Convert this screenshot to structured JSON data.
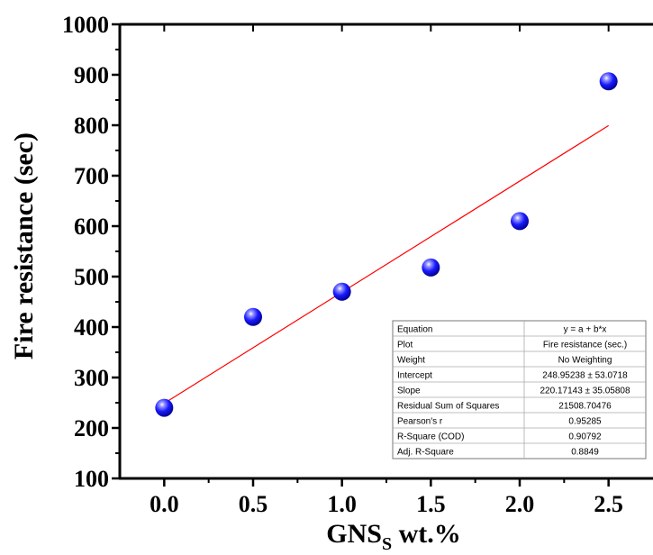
{
  "chart_data": {
    "type": "scatter",
    "title": "",
    "xlabel_main": "GNS",
    "xlabel_sub": "S",
    "xlabel_suffix": " wt.%",
    "ylabel": "Fire resistance (sec)",
    "xlim": [
      -0.25,
      2.75
    ],
    "ylim": [
      100,
      1000
    ],
    "x_ticks": [
      0.0,
      0.5,
      1.0,
      1.5,
      2.0,
      2.5
    ],
    "x_tick_labels": [
      "0.0",
      "0.5",
      "1.0",
      "1.5",
      "2.0",
      "2.5"
    ],
    "y_ticks": [
      100,
      200,
      300,
      400,
      500,
      600,
      700,
      800,
      900,
      1000
    ],
    "y_tick_labels": [
      "100",
      "200",
      "300",
      "400",
      "500",
      "600",
      "700",
      "800",
      "900",
      "1000"
    ],
    "grid": false,
    "series": [
      {
        "type": "scatter",
        "x": [
          0.0,
          0.5,
          1.0,
          1.5,
          2.0,
          2.5
        ],
        "y": [
          240,
          420,
          470,
          518,
          610,
          887
        ],
        "color": "#1a1aff"
      }
    ],
    "fit_line": {
      "intercept": 248.95238,
      "slope": 220.17143,
      "x_range": [
        0.0,
        2.5
      ],
      "color": "#ff0000"
    },
    "stats_table": {
      "placement": "bottom-right",
      "rows": [
        [
          "Equation",
          "y = a + b*x"
        ],
        [
          "Plot",
          "Fire resistance (sec.)"
        ],
        [
          "Weight",
          "No Weighting"
        ],
        [
          "Intercept",
          "248.95238 ± 53.0718"
        ],
        [
          "Slope",
          "220.17143 ± 35.05808"
        ],
        [
          "Residual Sum of Squares",
          "21508.70476"
        ],
        [
          "Pearson's r",
          "0.95285"
        ],
        [
          "R-Square (COD)",
          "0.90792"
        ],
        [
          "Adj. R-Square",
          "0.8849"
        ]
      ]
    }
  }
}
